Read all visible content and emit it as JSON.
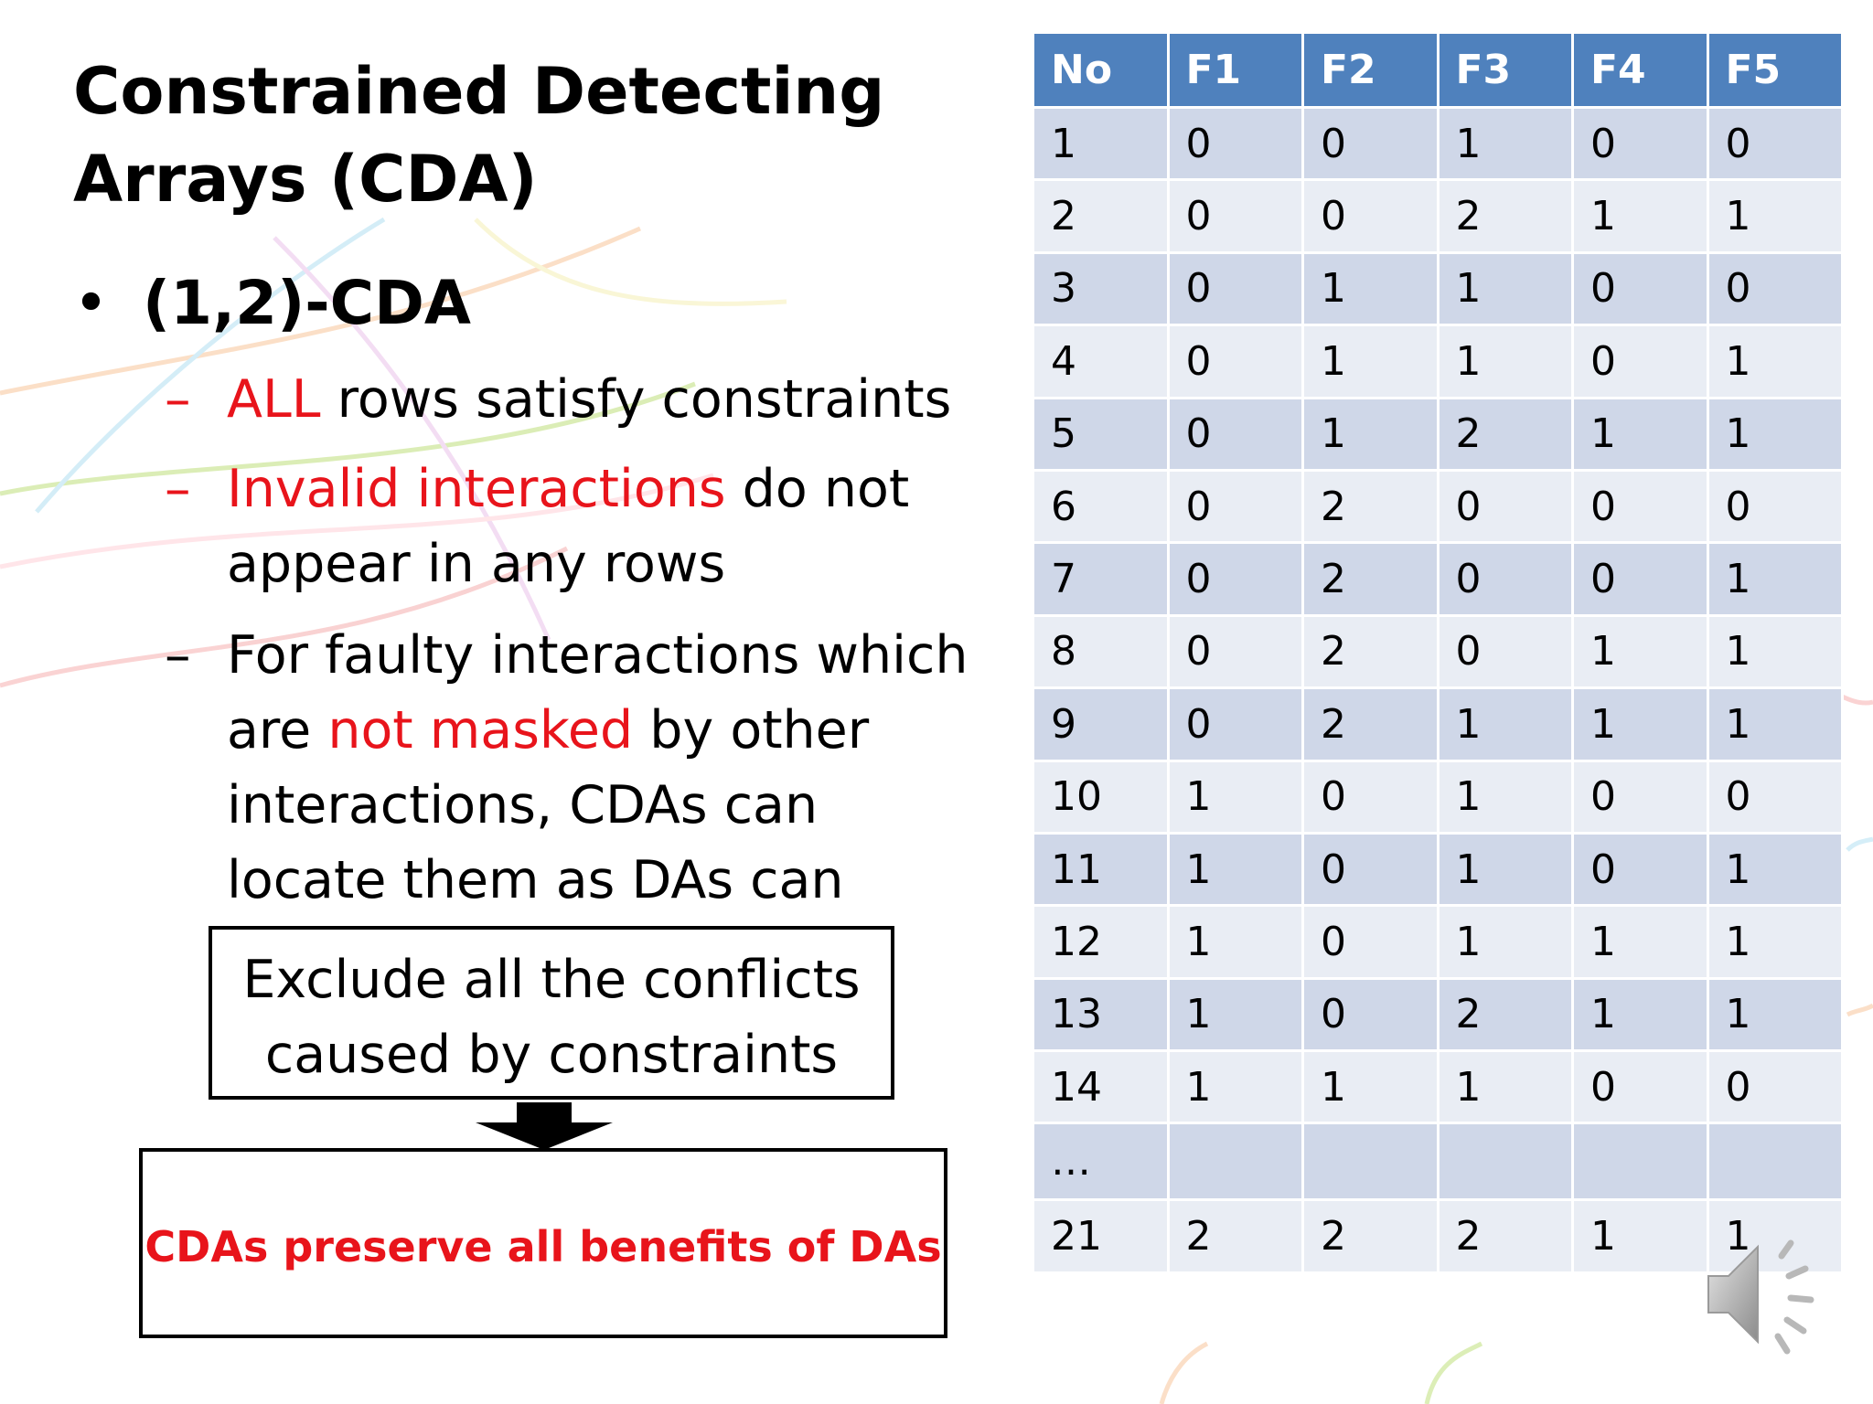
{
  "slide": {
    "title": "Constrained Detecting Arrays (CDA)",
    "bullet": "(1,2)-CDA",
    "sub1": {
      "red": "ALL",
      "rest": " rows satisfy constraints"
    },
    "sub2": {
      "red": "Invalid interactions",
      "rest": " do not appear in any rows"
    },
    "sub3": {
      "pre": "For faulty interactions which are ",
      "red": "not masked",
      "post": " by other interactions, CDAs can locate them as DAs can"
    },
    "box1": "Exclude all the conflicts caused by constraints",
    "box2": "CDAs preserve all benefits of DAs"
  },
  "table": {
    "headers": [
      "No",
      "F1",
      "F2",
      "F3",
      "F4",
      "F5"
    ],
    "rows": [
      [
        "1",
        "0",
        "0",
        "1",
        "0",
        "0"
      ],
      [
        "2",
        "0",
        "0",
        "2",
        "1",
        "1"
      ],
      [
        "3",
        "0",
        "1",
        "1",
        "0",
        "0"
      ],
      [
        "4",
        "0",
        "1",
        "1",
        "0",
        "1"
      ],
      [
        "5",
        "0",
        "1",
        "2",
        "1",
        "1"
      ],
      [
        "6",
        "0",
        "2",
        "0",
        "0",
        "0"
      ],
      [
        "7",
        "0",
        "2",
        "0",
        "0",
        "1"
      ],
      [
        "8",
        "0",
        "2",
        "0",
        "1",
        "1"
      ],
      [
        "9",
        "0",
        "2",
        "1",
        "1",
        "1"
      ],
      [
        "10",
        "1",
        "0",
        "1",
        "0",
        "0"
      ],
      [
        "11",
        "1",
        "0",
        "1",
        "0",
        "1"
      ],
      [
        "12",
        "1",
        "0",
        "1",
        "1",
        "1"
      ],
      [
        "13",
        "1",
        "0",
        "2",
        "1",
        "1"
      ],
      [
        "14",
        "1",
        "1",
        "1",
        "0",
        "0"
      ],
      [
        "…",
        "",
        "",
        "",
        "",
        ""
      ],
      [
        "21",
        "2",
        "2",
        "2",
        "1",
        "1"
      ]
    ]
  },
  "icons": {
    "arrow": "down-arrow-icon",
    "speaker": "speaker-icon"
  }
}
